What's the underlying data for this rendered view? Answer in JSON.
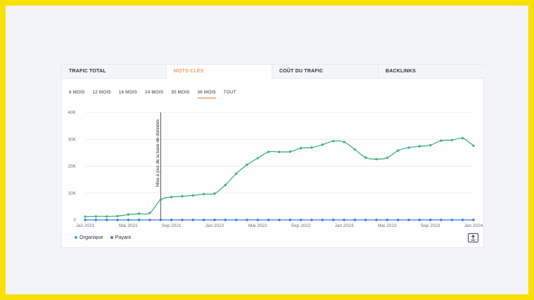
{
  "tabs": [
    {
      "label": "TRAFIC TOTAL",
      "active": false
    },
    {
      "label": "MOTS-CLÉS",
      "active": true
    },
    {
      "label": "COÛT DU TRAFIC",
      "active": false
    },
    {
      "label": "BACKLINKS",
      "active": false
    }
  ],
  "periods": [
    {
      "label": "6 MOIS",
      "active": false
    },
    {
      "label": "12 MOIS",
      "active": false
    },
    {
      "label": "18 MOIS",
      "active": false
    },
    {
      "label": "24 MOIS",
      "active": false
    },
    {
      "label": "30 MOIS",
      "active": false
    },
    {
      "label": "36 MOIS",
      "active": true
    },
    {
      "label": "TOUT",
      "active": false
    }
  ],
  "legend": [
    {
      "label": "Organique",
      "color": "#3fb27f"
    },
    {
      "label": "Payant",
      "color": "#3c78d8"
    }
  ],
  "export_icon": "export-icon",
  "chart_data": {
    "type": "line",
    "x_ticks": [
      "Jan 2021",
      "Mai 2021",
      "Sep 2021",
      "Jan 2022",
      "Mai 2022",
      "Sep 2022",
      "Jan 2023",
      "Mai 2023",
      "Sep 2023",
      "Jan 2024"
    ],
    "ylim": [
      0,
      40000
    ],
    "y_ticks": [
      "0",
      "10K",
      "20K",
      "30K",
      "40K"
    ],
    "grid": true,
    "annotation": {
      "label": "Mise à jour de la base de données",
      "x": "2021-08"
    },
    "series": [
      {
        "name": "Organique",
        "color": "#3fb27f",
        "x": [
          "2021-01",
          "2021-02",
          "2021-03",
          "2021-04",
          "2021-05",
          "2021-06",
          "2021-07",
          "2021-08",
          "2021-09",
          "2021-10",
          "2021-11",
          "2021-12",
          "2022-01",
          "2022-02",
          "2022-03",
          "2022-04",
          "2022-05",
          "2022-06",
          "2022-07",
          "2022-08",
          "2022-09",
          "2022-10",
          "2022-11",
          "2022-12",
          "2023-01",
          "2023-02",
          "2023-03",
          "2023-04",
          "2023-05",
          "2023-06",
          "2023-07",
          "2023-08",
          "2023-09",
          "2023-10",
          "2023-11",
          "2023-12",
          "2024-01"
        ],
        "values": [
          1200,
          1300,
          1300,
          1400,
          2000,
          2300,
          2600,
          7500,
          8500,
          8800,
          9100,
          9600,
          9800,
          13000,
          17200,
          20500,
          23000,
          25300,
          25300,
          25400,
          26700,
          26900,
          28000,
          29300,
          29000,
          26200,
          23200,
          22600,
          23100,
          25800,
          26900,
          27400,
          27800,
          29500,
          29700,
          30400,
          27600
        ]
      },
      {
        "name": "Payant",
        "color": "#3c78d8",
        "x": [
          "2021-01",
          "2021-02",
          "2021-03",
          "2021-04",
          "2021-05",
          "2021-06",
          "2021-07",
          "2021-08",
          "2021-09",
          "2021-10",
          "2021-11",
          "2021-12",
          "2022-01",
          "2022-02",
          "2022-03",
          "2022-04",
          "2022-05",
          "2022-06",
          "2022-07",
          "2022-08",
          "2022-09",
          "2022-10",
          "2022-11",
          "2022-12",
          "2023-01",
          "2023-02",
          "2023-03",
          "2023-04",
          "2023-05",
          "2023-06",
          "2023-07",
          "2023-08",
          "2023-09",
          "2023-10",
          "2023-11",
          "2023-12",
          "2024-01"
        ],
        "values": [
          0,
          0,
          0,
          0,
          0,
          0,
          0,
          0,
          0,
          0,
          0,
          0,
          0,
          0,
          0,
          0,
          0,
          0,
          0,
          0,
          0,
          0,
          0,
          0,
          0,
          0,
          0,
          0,
          0,
          0,
          0,
          0,
          0,
          0,
          0,
          0,
          0
        ]
      }
    ]
  }
}
